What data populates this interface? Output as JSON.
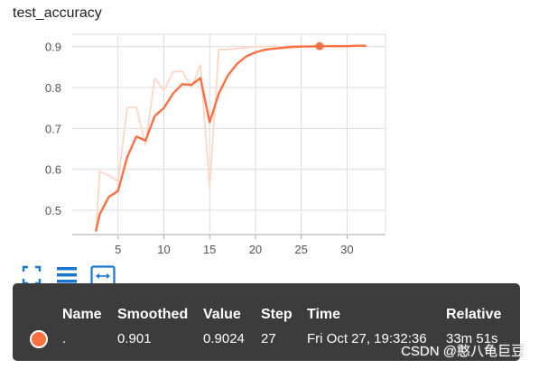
{
  "chart_data": {
    "type": "line",
    "title": "test_accuracy",
    "xlabel": "",
    "ylabel": "",
    "xlim": [
      0,
      34.2
    ],
    "ylim": [
      0.445,
      0.93
    ],
    "x_ticks": [
      5,
      10,
      15,
      20,
      25,
      30
    ],
    "y_ticks": [
      0.5,
      0.6,
      0.7,
      0.8,
      0.9
    ],
    "grid": true,
    "series": [
      {
        "role": "raw",
        "color": "#ffd7c9",
        "x": [
          2.6,
          3,
          4,
          5,
          6,
          7,
          8,
          9,
          10,
          11,
          12,
          13,
          14,
          15,
          16,
          17,
          18,
          19,
          20,
          21,
          22,
          23,
          24,
          25,
          26,
          27,
          28,
          29,
          30,
          31,
          32
        ],
        "y": [
          0.45,
          0.595,
          0.585,
          0.57,
          0.75,
          0.752,
          0.66,
          0.822,
          0.793,
          0.838,
          0.84,
          0.8,
          0.855,
          0.555,
          0.892,
          0.893,
          0.895,
          0.897,
          0.9,
          0.9,
          0.901,
          0.9,
          0.902,
          0.9,
          0.901,
          0.9024,
          0.901,
          0.902,
          0.901,
          0.902,
          0.902
        ]
      },
      {
        "role": "smoothed",
        "color": "#ff7043",
        "x": [
          2.6,
          3,
          4,
          5,
          6,
          7,
          8,
          9,
          10,
          11,
          12,
          13,
          14,
          15,
          16,
          17,
          18,
          19,
          20,
          21,
          22,
          23,
          24,
          25,
          26,
          27,
          28,
          29,
          30,
          31,
          32
        ],
        "y": [
          0.45,
          0.49,
          0.533,
          0.547,
          0.63,
          0.68,
          0.67,
          0.73,
          0.75,
          0.785,
          0.808,
          0.806,
          0.823,
          0.715,
          0.785,
          0.83,
          0.858,
          0.876,
          0.886,
          0.892,
          0.895,
          0.897,
          0.899,
          0.9,
          0.9,
          0.901,
          0.901,
          0.901,
          0.901,
          0.902,
          0.902
        ]
      }
    ],
    "highlight": {
      "x": 27,
      "y": 0.901
    }
  },
  "toolbar": {
    "icons": [
      "fullscreen-icon",
      "list-icon",
      "fit-domain-icon"
    ]
  },
  "tooltip": {
    "headers": {
      "name": "Name",
      "smoothed": "Smoothed",
      "value": "Value",
      "step": "Step",
      "time": "Time",
      "relative": "Relative"
    },
    "row": {
      "dot_color": "#ff7043",
      "name": ".",
      "smoothed": "0.901",
      "value": "0.9024",
      "step": "27",
      "time": "Fri Oct 27, 19:32:36",
      "relative": "33m 51s"
    }
  },
  "watermark": "CSDN @憨八龟巨豆"
}
